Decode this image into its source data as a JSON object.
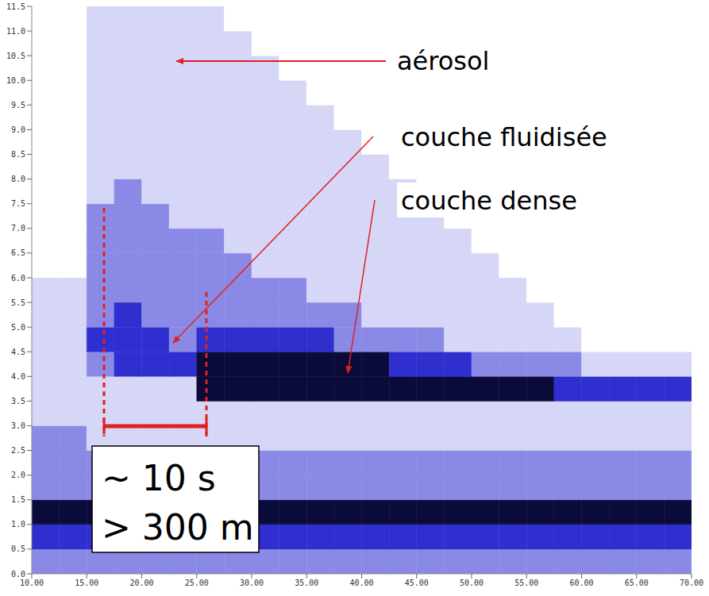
{
  "chart_data": {
    "type": "heatmap",
    "x_edges": [
      10,
      12.5,
      15,
      17.5,
      20,
      22.5,
      25,
      27.5,
      30,
      32.5,
      35,
      37.5,
      40,
      42.5,
      45,
      47.5,
      50,
      52.5,
      55,
      57.5,
      60,
      62.5,
      65,
      67.5,
      70
    ],
    "y_edges": [
      0,
      0.5,
      1,
      1.5,
      2,
      2.5,
      3,
      3.5,
      4,
      4.5,
      5,
      5.5,
      6,
      6.5,
      7,
      7.5,
      8,
      8.5,
      9,
      9.5,
      10,
      10.5,
      11,
      11.5
    ],
    "cells": [
      [
        2,
        2,
        2,
        2,
        2,
        2,
        2,
        2,
        2,
        2,
        2,
        2,
        2,
        2,
        2,
        2,
        2,
        2,
        2,
        2,
        2,
        2,
        2,
        2
      ],
      [
        3,
        3,
        3,
        3,
        3,
        3,
        3,
        3,
        3,
        3,
        3,
        3,
        3,
        3,
        3,
        3,
        3,
        3,
        3,
        3,
        3,
        3,
        3,
        3
      ],
      [
        4,
        4,
        4,
        4,
        4,
        4,
        4,
        4,
        4,
        4,
        4,
        4,
        4,
        4,
        4,
        4,
        4,
        4,
        4,
        4,
        4,
        4,
        4,
        4
      ],
      [
        2,
        2,
        2,
        2,
        2,
        2,
        2,
        2,
        2,
        2,
        2,
        2,
        2,
        2,
        2,
        2,
        2,
        2,
        2,
        2,
        2,
        2,
        2,
        2
      ],
      [
        2,
        2,
        2,
        2,
        2,
        2,
        2,
        2,
        2,
        2,
        2,
        2,
        2,
        2,
        2,
        2,
        2,
        2,
        2,
        2,
        2,
        2,
        2,
        2
      ],
      [
        2,
        2,
        1,
        1,
        1,
        1,
        1,
        1,
        1,
        1,
        1,
        1,
        1,
        1,
        1,
        1,
        1,
        1,
        1,
        1,
        1,
        1,
        1,
        1
      ],
      [
        1,
        1,
        1,
        1,
        1,
        1,
        1,
        1,
        1,
        1,
        1,
        1,
        1,
        1,
        1,
        1,
        1,
        1,
        1,
        1,
        1,
        1,
        1,
        1
      ],
      [
        1,
        1,
        1,
        1,
        1,
        1,
        4,
        4,
        4,
        4,
        4,
        4,
        4,
        4,
        4,
        4,
        4,
        4,
        4,
        3,
        3,
        3,
        3,
        3
      ],
      [
        1,
        1,
        2,
        3,
        3,
        3,
        4,
        4,
        4,
        4,
        4,
        4,
        4,
        3,
        3,
        3,
        2,
        2,
        2,
        2,
        1,
        1,
        1,
        1
      ],
      [
        1,
        1,
        3,
        3,
        3,
        2,
        3,
        3,
        3,
        3,
        3,
        2,
        2,
        2,
        2,
        1,
        1,
        1,
        1,
        1,
        0,
        0,
        0,
        0
      ],
      [
        1,
        1,
        2,
        3,
        2,
        2,
        2,
        2,
        2,
        2,
        2,
        2,
        1,
        1,
        1,
        1,
        1,
        1,
        1,
        0,
        0,
        0,
        0,
        0
      ],
      [
        1,
        1,
        2,
        2,
        2,
        2,
        2,
        2,
        2,
        2,
        1,
        1,
        1,
        1,
        1,
        1,
        1,
        1,
        0,
        0,
        0,
        0,
        0,
        0
      ],
      [
        0,
        0,
        2,
        2,
        2,
        2,
        2,
        2,
        1,
        1,
        1,
        1,
        1,
        1,
        1,
        1,
        1,
        0,
        0,
        0,
        0,
        0,
        0,
        0
      ],
      [
        0,
        0,
        2,
        2,
        2,
        2,
        2,
        1,
        1,
        1,
        1,
        1,
        1,
        1,
        1,
        1,
        0,
        0,
        0,
        0,
        0,
        0,
        0,
        0
      ],
      [
        0,
        0,
        2,
        2,
        2,
        1,
        1,
        1,
        1,
        1,
        1,
        1,
        1,
        1,
        1,
        0,
        0,
        0,
        0,
        0,
        0,
        0,
        0,
        0
      ],
      [
        0,
        0,
        1,
        2,
        1,
        1,
        1,
        1,
        1,
        1,
        1,
        1,
        1,
        1,
        0,
        0,
        0,
        0,
        0,
        0,
        0,
        0,
        0,
        0
      ],
      [
        0,
        0,
        1,
        1,
        1,
        1,
        1,
        1,
        1,
        1,
        1,
        1,
        1,
        0,
        0,
        0,
        0,
        0,
        0,
        0,
        0,
        0,
        0,
        0
      ],
      [
        0,
        0,
        1,
        1,
        1,
        1,
        1,
        1,
        1,
        1,
        1,
        1,
        0,
        0,
        0,
        0,
        0,
        0,
        0,
        0,
        0,
        0,
        0,
        0
      ],
      [
        0,
        0,
        1,
        1,
        1,
        1,
        1,
        1,
        1,
        1,
        1,
        0,
        0,
        0,
        0,
        0,
        0,
        0,
        0,
        0,
        0,
        0,
        0,
        0
      ],
      [
        0,
        0,
        1,
        1,
        1,
        1,
        1,
        1,
        1,
        1,
        0,
        0,
        0,
        0,
        0,
        0,
        0,
        0,
        0,
        0,
        0,
        0,
        0,
        0
      ],
      [
        0,
        0,
        1,
        1,
        1,
        1,
        1,
        1,
        1,
        0,
        0,
        0,
        0,
        0,
        0,
        0,
        0,
        0,
        0,
        0,
        0,
        0,
        0,
        0
      ],
      [
        0,
        0,
        1,
        1,
        1,
        1,
        1,
        1,
        0,
        0,
        0,
        0,
        0,
        0,
        0,
        0,
        0,
        0,
        0,
        0,
        0,
        0,
        0,
        0
      ],
      [
        0,
        0,
        1,
        1,
        1,
        1,
        1,
        0,
        0,
        0,
        0,
        0,
        0,
        0,
        0,
        0,
        0,
        0,
        0,
        0,
        0,
        0,
        0,
        0
      ]
    ],
    "colors": [
      "#ffffff",
      "#d6d6f7",
      "#8a8ae6",
      "#2f2fd0",
      "#0b0b3a"
    ],
    "xlim": [
      10,
      70
    ],
    "ylim": [
      0,
      11.5
    ],
    "xticks": [
      {
        "value": 10,
        "label": "10.00"
      },
      {
        "value": 15,
        "label": "15.00"
      },
      {
        "value": 20,
        "label": "20.00"
      },
      {
        "value": 25,
        "label": "25.00"
      },
      {
        "value": 30,
        "label": "30.00"
      },
      {
        "value": 35,
        "label": "35.00"
      },
      {
        "value": 40,
        "label": "40.00"
      },
      {
        "value": 45,
        "label": "45.00"
      },
      {
        "value": 50,
        "label": "50.00"
      },
      {
        "value": 55,
        "label": "55.00"
      },
      {
        "value": 60,
        "label": "60.00"
      },
      {
        "value": 65,
        "label": "65.00"
      },
      {
        "value": 70,
        "label": "70.00"
      }
    ],
    "yticks": [
      {
        "value": 0,
        "label": "0.0"
      },
      0.5,
      {
        "value": 1,
        "label": "1.0"
      },
      1.5,
      {
        "value": 2,
        "label": "2.0"
      },
      2.5,
      {
        "value": 3,
        "label": "3.0"
      },
      3.5,
      {
        "value": 4,
        "label": "4.0"
      },
      4.5,
      {
        "value": 5,
        "label": "5.0"
      },
      5.5,
      {
        "value": 6,
        "label": "6.0"
      },
      6.5,
      {
        "value": 7,
        "label": "7.0"
      },
      7.5,
      {
        "value": 8,
        "label": "8.0"
      },
      8.5,
      {
        "value": 9,
        "label": "9.0"
      },
      9.5,
      {
        "value": 10,
        "label": "10.0"
      },
      10.5,
      {
        "value": 11,
        "label": "11.0"
      },
      11.5
    ],
    "grid": false,
    "annotations": [
      "aérosol",
      "couche fluidisée",
      "couche dense"
    ],
    "scale_box": [
      "~ 10 s",
      "> 300 m"
    ]
  }
}
